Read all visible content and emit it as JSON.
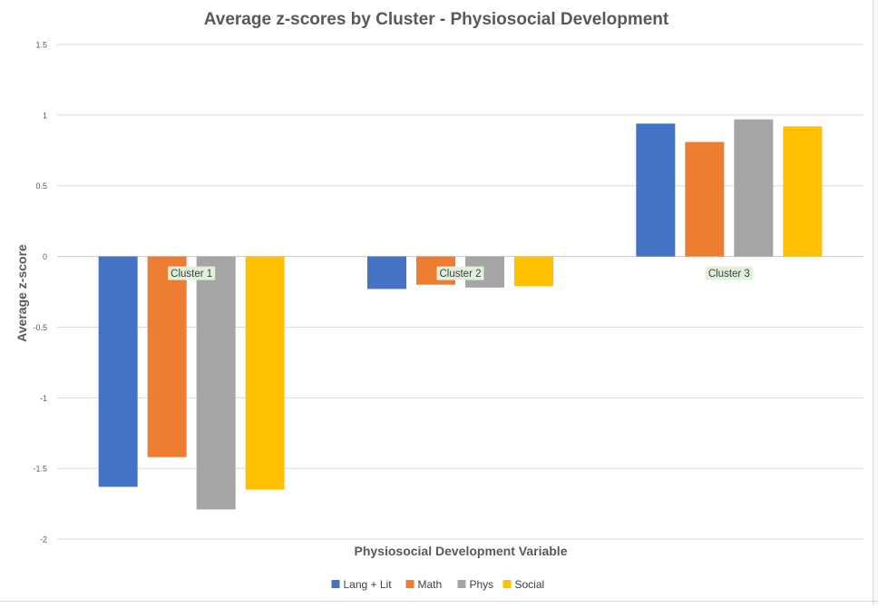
{
  "chart_data": {
    "type": "bar",
    "title": "Average z-scores by Cluster - Physiosocial Development",
    "xlabel": "Physiosocial Development Variable",
    "ylabel": "Average z-score",
    "ylim": [
      -2,
      1.5
    ],
    "yticks": [
      -2,
      -1.5,
      -1,
      -0.5,
      0,
      0.5,
      1,
      1.5
    ],
    "ytick_labels": [
      "-2",
      "-1.5",
      "-1",
      "-0.5",
      "0",
      "0.5",
      "1",
      "1.5"
    ],
    "grid": true,
    "legend_position": "bottom",
    "categories": [
      "Cluster 1",
      "Cluster 2",
      "Cluster 3"
    ],
    "series": [
      {
        "name": "Lang + Lit",
        "color": "#4472C4",
        "values": [
          -1.63,
          -0.23,
          0.94
        ]
      },
      {
        "name": "Math",
        "color": "#ED7D31",
        "values": [
          -1.42,
          -0.2,
          0.81
        ]
      },
      {
        "name": "Phys",
        "color": "#A5A5A5",
        "values": [
          -1.79,
          -0.22,
          0.97
        ]
      },
      {
        "name": "Social",
        "color": "#FFC000",
        "values": [
          -1.65,
          -0.21,
          0.92
        ]
      }
    ],
    "category_label_bg": "#E2EFDA"
  }
}
